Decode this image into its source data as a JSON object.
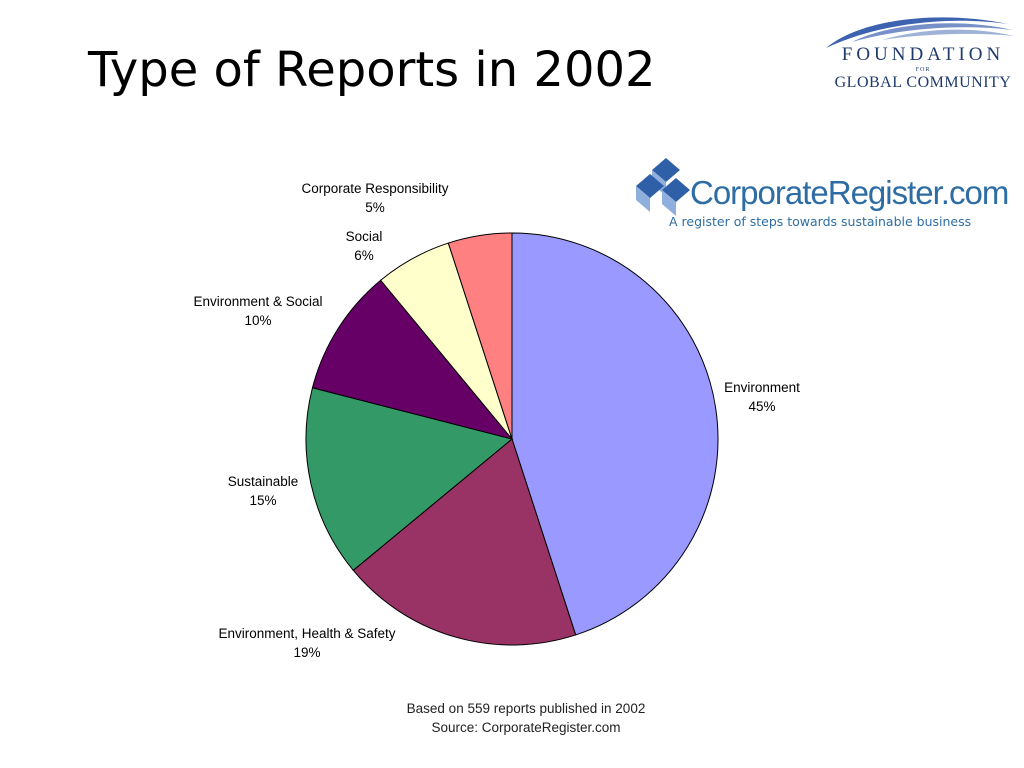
{
  "slide": {
    "title": "Type of Reports in 2002"
  },
  "logos": {
    "fgc": {
      "line1": "FOUNDATION",
      "line2": "FOR",
      "line3": "GLOBAL COMMUNITY",
      "color": "#1f3a6e",
      "swoosh_color": "#3d63b0"
    },
    "corporate_register": {
      "name": "CorporateRegister.com",
      "tagline": "A register of steps towards sustainable business",
      "color": "#2e6da4",
      "cube_colors": [
        "#2f5fa7",
        "#8fb0dc"
      ]
    }
  },
  "chart_data": {
    "type": "pie",
    "start_angle_deg": 0,
    "direction": "clockwise",
    "slices": [
      {
        "label": "Environment",
        "percent_label": "45%",
        "value": 45,
        "color": "#9999ff"
      },
      {
        "label": "Environment, Health & Safety",
        "percent_label": "19%",
        "value": 19,
        "color": "#993366"
      },
      {
        "label": "Sustainable",
        "percent_label": "15%",
        "value": 15,
        "color": "#339966"
      },
      {
        "label": "Environment & Social",
        "percent_label": "10%",
        "value": 10,
        "color": "#660066"
      },
      {
        "label": "Social",
        "percent_label": "6%",
        "value": 6,
        "color": "#ffffcc"
      },
      {
        "label": "Corporate Responsibility",
        "percent_label": "5%",
        "value": 5,
        "color": "#ff8080"
      }
    ],
    "notes": [
      "Based on 559 reports published in 2002",
      "Source: CorporateRegister.com"
    ]
  }
}
